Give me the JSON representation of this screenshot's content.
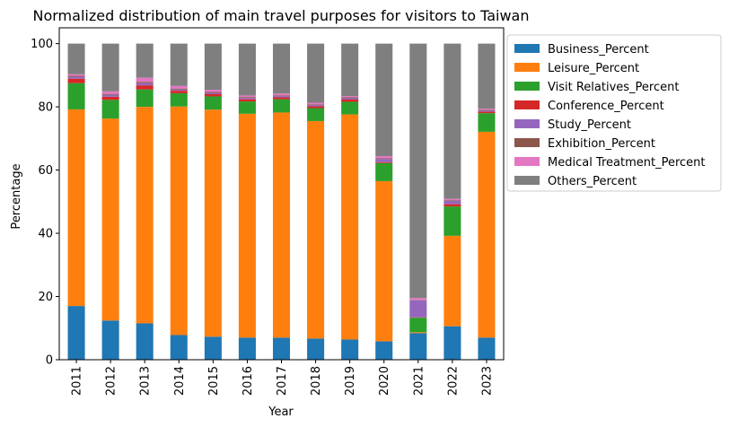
{
  "chart_data": {
    "type": "bar",
    "stacked": true,
    "title": "Normalized distribution of main travel purposes for visitors to Taiwan",
    "xlabel": "Year",
    "ylabel": "Percentage",
    "ylim": [
      0,
      105
    ],
    "yticks": [
      0,
      20,
      40,
      60,
      80,
      100
    ],
    "legend_position": "outside-right-top",
    "grid": false,
    "categories": [
      "2011",
      "2012",
      "2013",
      "2014",
      "2015",
      "2016",
      "2017",
      "2018",
      "2019",
      "2020",
      "2021",
      "2022",
      "2023"
    ],
    "series": [
      {
        "name": "Business_Percent",
        "color": "#1f77b4",
        "values": [
          17.0,
          12.4,
          11.5,
          7.8,
          7.3,
          7.0,
          7.0,
          6.7,
          6.4,
          5.8,
          8.4,
          10.6,
          7.0
        ]
      },
      {
        "name": "Leisure_Percent",
        "color": "#ff7f0e",
        "values": [
          62.2,
          63.9,
          68.5,
          72.3,
          71.8,
          70.8,
          71.2,
          68.8,
          71.2,
          50.7,
          0.3,
          28.6,
          65.1
        ]
      },
      {
        "name": "Visit Relatives_Percent",
        "color": "#2ca02c",
        "values": [
          8.3,
          5.9,
          5.5,
          4.2,
          4.2,
          3.9,
          4.2,
          4.1,
          4.0,
          5.7,
          4.6,
          9.3,
          5.9
        ]
      },
      {
        "name": "Conference_Percent",
        "color": "#d62728",
        "values": [
          1.4,
          1.0,
          1.3,
          0.8,
          0.7,
          0.7,
          0.6,
          0.6,
          0.7,
          0.3,
          0.1,
          0.7,
          0.5
        ]
      },
      {
        "name": "Study_Percent",
        "color": "#9467bd",
        "values": [
          0.6,
          0.6,
          0.7,
          0.4,
          0.4,
          0.4,
          0.4,
          0.4,
          0.4,
          1.0,
          5.4,
          1.1,
          0.4
        ]
      },
      {
        "name": "Exhibition_Percent",
        "color": "#8c564b",
        "values": [
          0.3,
          0.3,
          0.4,
          0.3,
          0.3,
          0.3,
          0.2,
          0.2,
          0.3,
          0.2,
          0.1,
          0.2,
          0.2
        ]
      },
      {
        "name": "Medical Treatment_Percent",
        "color": "#e377c2",
        "values": [
          0.5,
          0.8,
          1.3,
          0.8,
          0.7,
          0.5,
          0.6,
          0.5,
          0.4,
          0.7,
          0.6,
          0.4,
          0.3
        ]
      },
      {
        "name": "Others_Percent",
        "color": "#7f7f7f",
        "values": [
          9.7,
          15.1,
          10.8,
          13.4,
          14.6,
          16.4,
          15.8,
          18.7,
          16.6,
          35.6,
          80.5,
          49.1,
          20.6
        ]
      }
    ]
  }
}
